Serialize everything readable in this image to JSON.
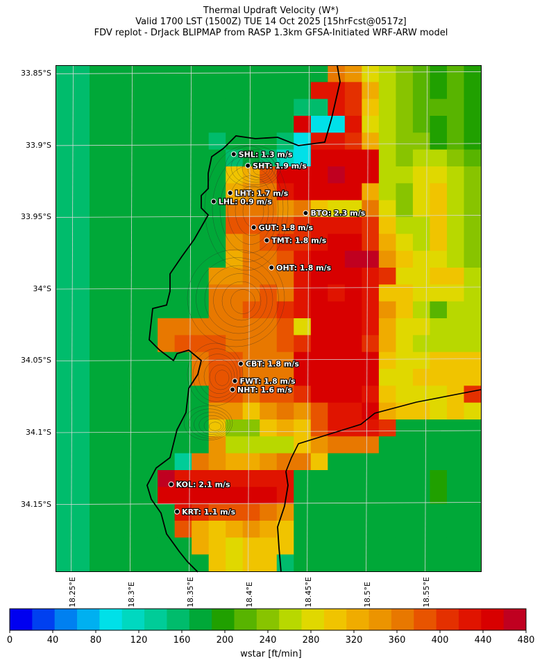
{
  "title": {
    "line1": "Thermal Updraft Velocity (W*)",
    "line2": "Valid 1700 LST (1500Z) TUE 14 Oct 2025 [15hrFcst@0517z]",
    "line3": "FDV replot - DrJack BLIPMAP from RASP 1.3km GFSA-Initiated WRF-ARW model"
  },
  "lat_labels": [
    "33.85°S",
    "33.9°S",
    "33.95°S",
    "34°S",
    "34.05°S",
    "34.1°S",
    "34.15°S"
  ],
  "lon_labels": [
    "18.25°E",
    "18.3°E",
    "18.35°E",
    "18.4°E",
    "18.45°E",
    "18.5°E",
    "18.55°E"
  ],
  "stations": [
    {
      "label": "SHL: 1.3 m/s",
      "lat": -33.906,
      "lon": 18.386
    },
    {
      "label": "SHT: 1.9 m/s",
      "lat": -33.914,
      "lon": 18.398
    },
    {
      "label": "LHT: 1.7 m/s",
      "lat": -33.933,
      "lon": 18.383
    },
    {
      "label": "LHL: 0.9 m/s",
      "lat": -33.939,
      "lon": 18.369
    },
    {
      "label": "BTO: 2.3 m/s",
      "lat": -33.947,
      "lon": 18.447
    },
    {
      "label": "GUT: 1.8 m/s",
      "lat": -33.957,
      "lon": 18.403
    },
    {
      "label": "TMT: 1.8 m/s",
      "lat": -33.966,
      "lon": 18.414
    },
    {
      "label": "OHT: 1.8 m/s",
      "lat": -33.985,
      "lon": 18.418
    },
    {
      "label": "CBT: 1.8 m/s",
      "lat": -34.052,
      "lon": 18.392
    },
    {
      "label": "FWT: 1.8 m/s",
      "lat": -34.064,
      "lon": 18.387
    },
    {
      "label": "NHT: 1.6 m/s",
      "lat": -34.07,
      "lon": 18.385
    },
    {
      "label": "KOL: 2.1 m/s",
      "lat": -34.136,
      "lon": 18.333
    },
    {
      "label": "KRT: 1.1 m/s",
      "lat": -34.155,
      "lon": 18.338
    }
  ],
  "colorbar": {
    "label": "wstar [ft/min]",
    "min": 0,
    "max": 480,
    "step": 20,
    "ticks": [
      "0",
      "40",
      "80",
      "120",
      "160",
      "200",
      "240",
      "280",
      "320",
      "360",
      "400",
      "440",
      "480"
    ],
    "colors": [
      "#0000f0",
      "#0040f0",
      "#0080f0",
      "#00b0f0",
      "#00e0e8",
      "#00d8c0",
      "#00cc98",
      "#00bc6c",
      "#00a838",
      "#20a000",
      "#58b400",
      "#88c400",
      "#b8d800",
      "#e0d800",
      "#f0c400",
      "#f0ac00",
      "#ec9400",
      "#e87800",
      "#e85400",
      "#e43000",
      "#e01400",
      "#d80000",
      "#c00020"
    ]
  },
  "wstar_ft_min": {
    "grid_origin": "north-west",
    "cell_deg": 0.0125,
    "rows": [
      "AAAAAAAAAAAAAAAAAAAAAAAAA",
      "AAAAAAAAAAAAAAAAAAAAAAAAA",
      "AAAAAAAAAAAAAAAAAAAAAAAAA",
      "AAAAAAAAAAAAAAAAAAAAAAAAA",
      "AAAAAAAAAAAAAAAAAAAAAAAAA",
      "AAAAAAAAAAAAAAAAAAAAAAAAA",
      "AAAAAAAAAAAAAAAAAAAAAAAAA",
      "AAAAAAAAAAAAAAAAAAAAAAAAA",
      "AAAAAAAAAAAAAAAAAAAAAAAAA",
      "AAAAAAAAAAAAAAAAAAAAAAAAA",
      "AAAAAAAAAAAAAAAAAAAAAAAAA",
      "AAAAAAAAAAAAAAAAAAAAAAAAA",
      "AAAAAAAAAAAAAAAAAAAAAAAAA",
      "AAAAAAAAAAAAAAAAAAAAAAAAA",
      "AAAAAAAAAAAAAAAAAAAAAAAAA",
      "AAAAAAAAAAAAAAAAAAAAAAAAA",
      "AAAAAAAAAAAAAAAAAAAAAAAAA",
      "AAAAAAAAAAAAAAAAAAAAAAAAA",
      "AAAAAAAAAAAAAAAAAAAAAAAAA",
      "AAAAAAAAAAAAAAAAAAAAAAAAA",
      "AAAAAAAAAAAAAAAAAAAAAAAAA",
      "AAAAAAAAAAAAAAAAAAAAAAAAA",
      "AAAAAAAAAAAAAAAAAAAAAAAAA",
      "AAAAAAAAAAAAAAAAAAAAAAAAA",
      "AAAAAAAAAAAAAAAAAAAAAAAAA",
      "AAAAAAAAAAAAAAAAAAAAAAAAA",
      "AAAAAAAAAAAAAAAAAAAAAAAAA",
      "AAAAAAAAAAAAAAAAAAAAAAAAA",
      "AAAAAAAAAAAAAAAAAAAAAAAAA",
      "AAAAAAAAAAAAAAAAAAAAAAAAA"
    ],
    "values": [
      [
        160,
        160,
        180,
        180,
        180,
        180,
        180,
        180,
        180,
        180,
        180,
        180,
        180,
        180,
        180,
        180,
        360,
        340,
        280,
        260,
        240,
        220,
        200,
        220,
        200
      ],
      [
        160,
        160,
        180,
        180,
        180,
        180,
        180,
        180,
        180,
        180,
        180,
        180,
        180,
        180,
        180,
        420,
        420,
        400,
        320,
        260,
        240,
        220,
        200,
        220,
        200
      ],
      [
        160,
        160,
        180,
        180,
        180,
        180,
        180,
        180,
        180,
        180,
        180,
        180,
        180,
        180,
        160,
        160,
        420,
        400,
        300,
        260,
        240,
        220,
        220,
        220,
        200
      ],
      [
        160,
        160,
        180,
        180,
        180,
        180,
        180,
        180,
        180,
        180,
        180,
        180,
        180,
        180,
        440,
        100,
        100,
        420,
        280,
        260,
        240,
        220,
        200,
        220,
        200
      ],
      [
        160,
        160,
        180,
        180,
        180,
        180,
        180,
        180,
        180,
        160,
        180,
        180,
        180,
        160,
        100,
        420,
        420,
        400,
        320,
        260,
        240,
        240,
        200,
        220,
        200
      ],
      [
        160,
        160,
        180,
        180,
        180,
        180,
        180,
        180,
        180,
        180,
        160,
        180,
        160,
        120,
        100,
        440,
        440,
        440,
        440,
        260,
        240,
        260,
        260,
        240,
        220
      ],
      [
        160,
        160,
        180,
        180,
        180,
        180,
        180,
        180,
        180,
        180,
        300,
        320,
        380,
        440,
        440,
        440,
        460,
        440,
        440,
        260,
        260,
        280,
        280,
        260,
        240
      ],
      [
        160,
        160,
        180,
        180,
        180,
        180,
        180,
        180,
        180,
        180,
        320,
        340,
        360,
        420,
        440,
        440,
        440,
        440,
        320,
        260,
        240,
        280,
        300,
        260,
        240
      ],
      [
        160,
        160,
        180,
        180,
        180,
        180,
        180,
        180,
        180,
        180,
        360,
        360,
        360,
        340,
        360,
        300,
        280,
        280,
        360,
        280,
        240,
        280,
        300,
        260,
        240
      ],
      [
        160,
        160,
        180,
        180,
        180,
        180,
        180,
        180,
        180,
        180,
        380,
        380,
        380,
        380,
        400,
        420,
        420,
        420,
        400,
        300,
        260,
        260,
        300,
        260,
        240
      ],
      [
        160,
        160,
        180,
        180,
        180,
        180,
        180,
        180,
        180,
        180,
        340,
        360,
        380,
        400,
        400,
        420,
        440,
        440,
        400,
        320,
        280,
        260,
        300,
        260,
        240
      ],
      [
        160,
        160,
        180,
        180,
        180,
        180,
        180,
        180,
        180,
        180,
        320,
        360,
        360,
        380,
        420,
        440,
        440,
        460,
        460,
        340,
        300,
        280,
        280,
        260,
        240
      ],
      [
        160,
        160,
        180,
        180,
        180,
        180,
        180,
        180,
        180,
        340,
        340,
        360,
        360,
        360,
        420,
        440,
        440,
        440,
        420,
        400,
        280,
        280,
        300,
        300,
        260
      ],
      [
        160,
        160,
        180,
        180,
        180,
        180,
        180,
        180,
        180,
        360,
        360,
        360,
        380,
        360,
        420,
        440,
        420,
        440,
        420,
        300,
        300,
        280,
        280,
        280,
        260
      ],
      [
        160,
        160,
        180,
        180,
        180,
        180,
        180,
        180,
        180,
        360,
        360,
        380,
        380,
        400,
        420,
        440,
        440,
        440,
        420,
        340,
        300,
        260,
        220,
        260,
        260
      ],
      [
        160,
        160,
        180,
        180,
        180,
        180,
        360,
        360,
        360,
        360,
        360,
        360,
        360,
        380,
        280,
        440,
        440,
        440,
        420,
        320,
        280,
        280,
        260,
        260,
        260
      ],
      [
        160,
        160,
        180,
        180,
        180,
        180,
        360,
        380,
        380,
        380,
        360,
        360,
        360,
        380,
        400,
        440,
        440,
        440,
        400,
        320,
        280,
        260,
        260,
        260,
        260
      ],
      [
        160,
        160,
        180,
        180,
        180,
        180,
        180,
        180,
        360,
        380,
        380,
        360,
        360,
        360,
        440,
        440,
        440,
        440,
        440,
        300,
        280,
        280,
        300,
        300,
        300
      ],
      [
        160,
        160,
        180,
        180,
        180,
        180,
        180,
        180,
        360,
        380,
        380,
        360,
        360,
        360,
        440,
        440,
        440,
        440,
        440,
        280,
        280,
        300,
        300,
        300,
        300
      ],
      [
        160,
        160,
        180,
        180,
        180,
        180,
        180,
        180,
        180,
        380,
        380,
        360,
        380,
        380,
        400,
        440,
        440,
        440,
        420,
        300,
        280,
        280,
        280,
        300,
        400
      ],
      [
        160,
        160,
        180,
        180,
        180,
        180,
        180,
        180,
        180,
        340,
        340,
        300,
        340,
        360,
        340,
        380,
        420,
        420,
        440,
        320,
        300,
        300,
        280,
        300,
        280
      ],
      [
        160,
        160,
        180,
        180,
        180,
        180,
        180,
        180,
        180,
        300,
        240,
        240,
        300,
        320,
        300,
        380,
        420,
        420,
        420,
        400,
        180,
        180,
        180,
        180,
        180
      ],
      [
        160,
        160,
        180,
        180,
        180,
        180,
        180,
        180,
        180,
        340,
        260,
        260,
        260,
        260,
        300,
        340,
        360,
        360,
        360,
        180,
        180,
        180,
        180,
        180,
        180
      ],
      [
        160,
        160,
        180,
        180,
        180,
        180,
        180,
        140,
        360,
        340,
        320,
        320,
        340,
        360,
        360,
        300,
        180,
        180,
        180,
        180,
        180,
        180,
        180,
        180,
        180
      ],
      [
        160,
        160,
        180,
        180,
        180,
        180,
        460,
        420,
        420,
        420,
        420,
        420,
        420,
        420,
        180,
        180,
        180,
        180,
        180,
        180,
        180,
        180,
        200,
        180,
        180
      ],
      [
        160,
        160,
        180,
        180,
        180,
        180,
        440,
        440,
        440,
        440,
        440,
        440,
        440,
        420,
        180,
        180,
        180,
        180,
        180,
        180,
        180,
        180,
        200,
        180,
        180
      ],
      [
        160,
        160,
        180,
        180,
        180,
        180,
        180,
        420,
        400,
        380,
        380,
        380,
        360,
        340,
        180,
        180,
        180,
        180,
        180,
        180,
        180,
        180,
        180,
        180,
        180
      ],
      [
        160,
        160,
        180,
        180,
        180,
        180,
        180,
        380,
        320,
        300,
        320,
        340,
        320,
        300,
        180,
        180,
        180,
        180,
        180,
        180,
        180,
        180,
        180,
        180,
        180
      ],
      [
        160,
        160,
        180,
        180,
        180,
        180,
        180,
        180,
        320,
        300,
        280,
        300,
        300,
        300,
        180,
        180,
        180,
        180,
        180,
        180,
        180,
        180,
        180,
        180,
        180
      ],
      [
        160,
        160,
        180,
        180,
        180,
        180,
        180,
        180,
        180,
        300,
        280,
        300,
        300,
        160,
        180,
        180,
        180,
        180,
        180,
        180,
        180,
        180,
        180,
        180,
        180
      ]
    ]
  }
}
